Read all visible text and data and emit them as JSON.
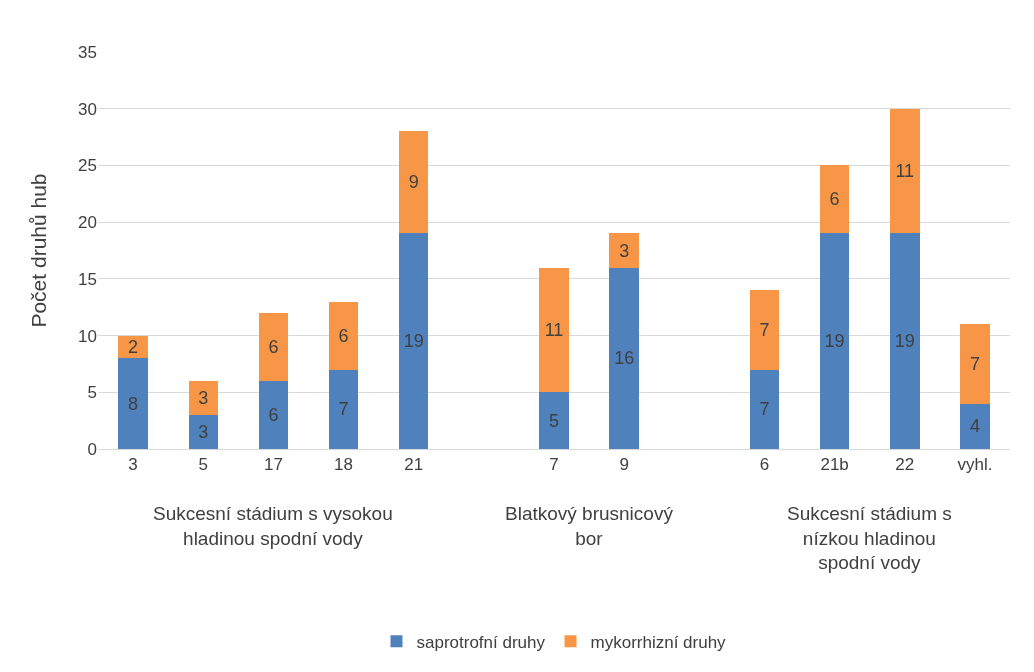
{
  "chart_data": {
    "type": "bar",
    "stacked": true,
    "ylabel": "Počet druhů hub",
    "categories": [
      "3",
      "5",
      "17",
      "18",
      "21",
      null,
      "7",
      "9",
      null,
      "6",
      "21b",
      "22",
      "vyhl."
    ],
    "series": [
      {
        "name": "saprotrofní druhy",
        "color": "#4f81bd",
        "values": [
          8,
          3,
          6,
          7,
          19,
          null,
          5,
          16,
          null,
          7,
          19,
          19,
          4
        ]
      },
      {
        "name": "mykorrhizní druhy",
        "color": "#f79646",
        "values": [
          2,
          3,
          6,
          6,
          9,
          null,
          11,
          3,
          null,
          7,
          6,
          11,
          7
        ]
      }
    ],
    "ylim": [
      0,
      35
    ],
    "yticks": [
      0,
      5,
      10,
      15,
      20,
      25,
      30,
      35
    ],
    "grid": "y",
    "legend": "bottom",
    "data_labels": true,
    "annotations": [
      "Sukcesní stádium s vysokou hladinou spodní vody",
      "Blatkový brusnicový bor",
      "Sukcesní stádium s nízkou hladinou spodní vody"
    ]
  }
}
